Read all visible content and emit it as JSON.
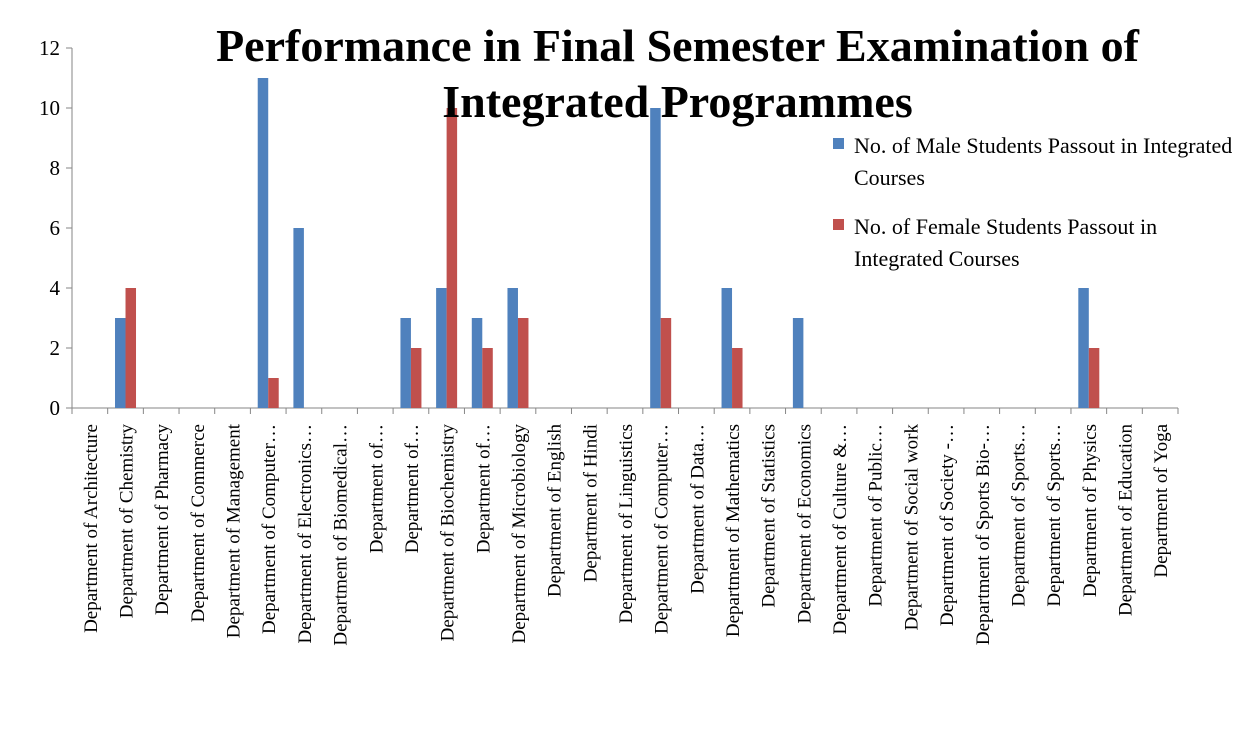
{
  "chart_data": {
    "type": "bar",
    "title": "Performance in Final Semester Examination of Integrated Programmes",
    "categories": [
      "Department of Architecture",
      "Department of Chemistry",
      "Department of Pharmacy",
      "Department of Commerce",
      "Department of Management",
      "Department of Computer…",
      "Department of Electronics…",
      "Department of Biomedical…",
      "Department of…",
      "Department of…",
      "Department of Biochemistry",
      "Department of…",
      "Department of Microbiology",
      "Department of English",
      "Department of Hindi",
      "Department of Linguistics",
      "Department of Computer…",
      "Department of Data…",
      "Department of Mathematics",
      "Department of Statistics",
      "Department of Economics",
      "Department of Culture &…",
      "Department of Public…",
      "Department of Social work",
      "Department of Society -…",
      "Department of Sports Bio-…",
      "Department of Sports…",
      "Department of Sports…",
      "Department of Physics",
      "Department of Education",
      "Department of Yoga"
    ],
    "series": [
      {
        "name": "No. of Male Students Passout in Integrated  Courses",
        "color": "#4f81bd",
        "values": [
          0,
          3,
          0,
          0,
          0,
          11,
          6,
          0,
          0,
          3,
          4,
          3,
          4,
          0,
          0,
          0,
          10,
          0,
          4,
          0,
          3,
          0,
          0,
          0,
          0,
          0,
          0,
          0,
          4,
          0,
          0
        ]
      },
      {
        "name": "No. of Female Students Passout in Integrated Courses",
        "color": "#c0504d",
        "values": [
          0,
          4,
          0,
          0,
          0,
          1,
          0,
          0,
          0,
          2,
          10,
          2,
          3,
          0,
          0,
          0,
          3,
          0,
          2,
          0,
          0,
          0,
          0,
          0,
          0,
          0,
          0,
          0,
          2,
          0,
          0
        ]
      }
    ],
    "ylim": [
      0,
      12
    ],
    "yticks": [
      0,
      2,
      4,
      6,
      8,
      10,
      12
    ],
    "grid": false,
    "legend": "right"
  }
}
